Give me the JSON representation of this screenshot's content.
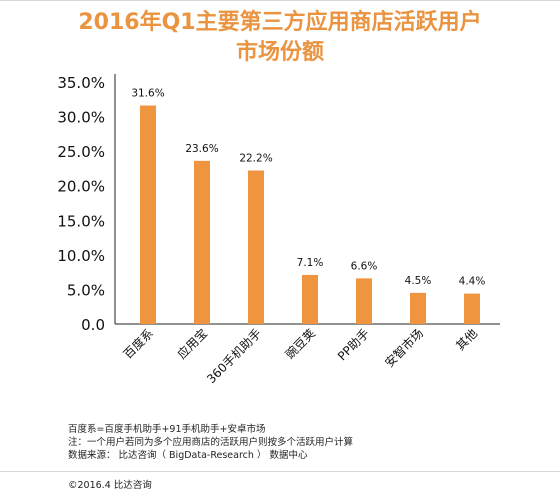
{
  "title_lines": [
    "2016年Q1主要第三方应用商店活跃用户",
    "市场份额"
  ],
  "chart_data": {
    "type": "bar",
    "title": "2016年Q1主要第三方应用商店活跃用户市场份额",
    "categories": [
      "百度系",
      "应用宝",
      "360手机助手",
      "豌豆荚",
      "PP助手",
      "安智市场",
      "其他"
    ],
    "values": [
      31.6,
      23.6,
      22.2,
      7.1,
      6.6,
      4.5,
      4.4
    ],
    "value_labels": [
      "31.6%",
      "23.6%",
      "22.2%",
      "7.1%",
      "6.6%",
      "4.5%",
      "4.4%"
    ],
    "yticks": [
      "0.0",
      "5.0%",
      "10.0%",
      "15.0%",
      "20.0%",
      "25.0%",
      "30.0%",
      "35.0%"
    ],
    "ylim": [
      0,
      35
    ],
    "xlabel": "",
    "ylabel": "",
    "grid": false,
    "bar_color": "#f0953f"
  },
  "notes": [
    "百度系=百度手机助手+91手机助手+安卓市场",
    "注：一个用户若同为多个应用商店的活跃用户则按多个活跃用户计算",
    "数据来源： 比达咨询（ BigData-Research ） 数据中心"
  ],
  "footer": "©2016.4 比达咨询"
}
